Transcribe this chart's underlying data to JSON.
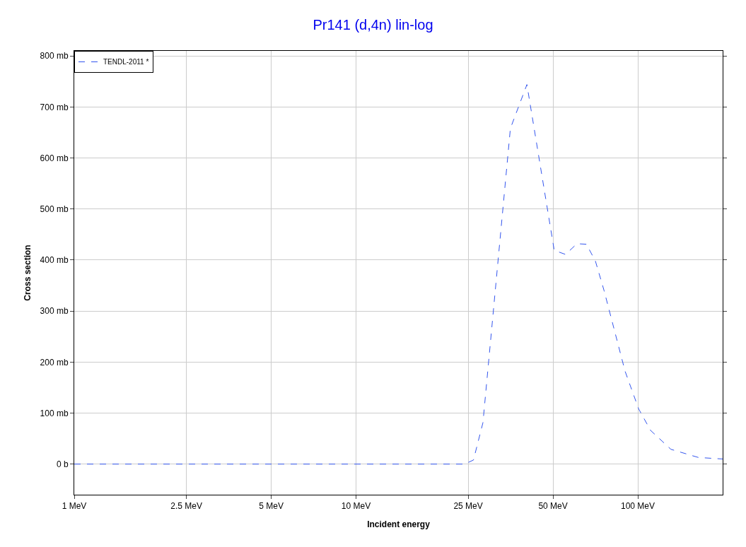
{
  "chart_data": {
    "type": "line",
    "title": "Pr141 (d,4n) lin-log",
    "xlabel": "Incident energy",
    "ylabel": "Cross section",
    "log": "x",
    "grid": true,
    "legend": "top left",
    "line_style": "dashed",
    "marker": "none",
    "x": [
      1,
      24.3,
      26.1,
      28.2,
      35.3,
      40.4,
      50.5,
      55.4,
      60.8,
      65.7,
      70.7,
      75.9,
      90.1,
      100.7,
      111,
      131,
      164,
      200
    ],
    "series": [
      {
        "name": "TENDL-2011 *",
        "color": "#3355ee",
        "values": [
          0,
          0,
          8,
          81,
          658,
          744,
          419,
          411,
          432,
          431,
          398,
          340,
          182,
          108,
          66,
          29,
          13,
          10
        ]
      }
    ],
    "xlim": [
      1,
      200
    ],
    "xticks": [
      {
        "value": 1,
        "label": "1 MeV"
      },
      {
        "value": 2.5,
        "label": "2.5 MeV"
      },
      {
        "value": 5,
        "label": "5 MeV"
      },
      {
        "value": 10,
        "label": "10 MeV"
      },
      {
        "value": 25,
        "label": "25 MeV"
      },
      {
        "value": 50,
        "label": "50 MeV"
      },
      {
        "value": 100,
        "label": "100 MeV"
      }
    ],
    "ylim": [
      -60,
      810
    ],
    "yticks": [
      {
        "value": 0,
        "label": "0 b"
      },
      {
        "value": 100,
        "label": "100 mb"
      },
      {
        "value": 200,
        "label": "200 mb"
      },
      {
        "value": 300,
        "label": "300 mb"
      },
      {
        "value": 400,
        "label": "400 mb"
      },
      {
        "value": 500,
        "label": "500 mb"
      },
      {
        "value": 600,
        "label": "600 mb"
      },
      {
        "value": 700,
        "label": "700 mb"
      },
      {
        "value": 800,
        "label": "800 mb"
      }
    ]
  }
}
